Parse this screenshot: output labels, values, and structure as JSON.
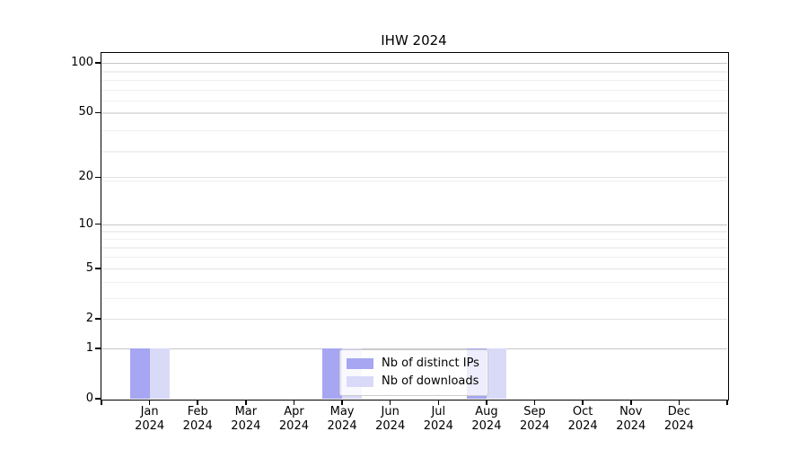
{
  "chart_data": {
    "type": "bar",
    "title": "IHW 2024",
    "x": {
      "months": [
        "Jan",
        "Feb",
        "Mar",
        "Apr",
        "May",
        "Jun",
        "Jul",
        "Aug",
        "Sep",
        "Oct",
        "Nov",
        "Dec"
      ],
      "year": "2024"
    },
    "series": [
      {
        "name": "Nb of distinct IPs",
        "color": "#a6a6f2",
        "values": [
          1,
          0,
          0,
          0,
          1,
          0,
          0,
          1,
          0,
          0,
          0,
          0
        ]
      },
      {
        "name": "Nb of downloads",
        "color": "#d9d9f8",
        "values": [
          1,
          0,
          0,
          0,
          1,
          0,
          0,
          1,
          0,
          0,
          0,
          0
        ]
      }
    ],
    "y_axis": {
      "scale": "log10(value+1)",
      "tick_values": [
        0,
        1,
        2,
        5,
        10,
        20,
        50,
        100
      ],
      "tick_labels": [
        "0",
        "1",
        "2",
        "5",
        "10",
        "20",
        "50",
        "100"
      ],
      "ylim_top": 115,
      "gridlines": {
        "strong": [
          1,
          10,
          100
        ],
        "medium": [
          2,
          5,
          20,
          50
        ],
        "faint": [
          3,
          4,
          6,
          7,
          8,
          9,
          19,
          29,
          39,
          59,
          69,
          79,
          89
        ]
      }
    },
    "grid": true,
    "legend_position": "lower center inside plot"
  }
}
